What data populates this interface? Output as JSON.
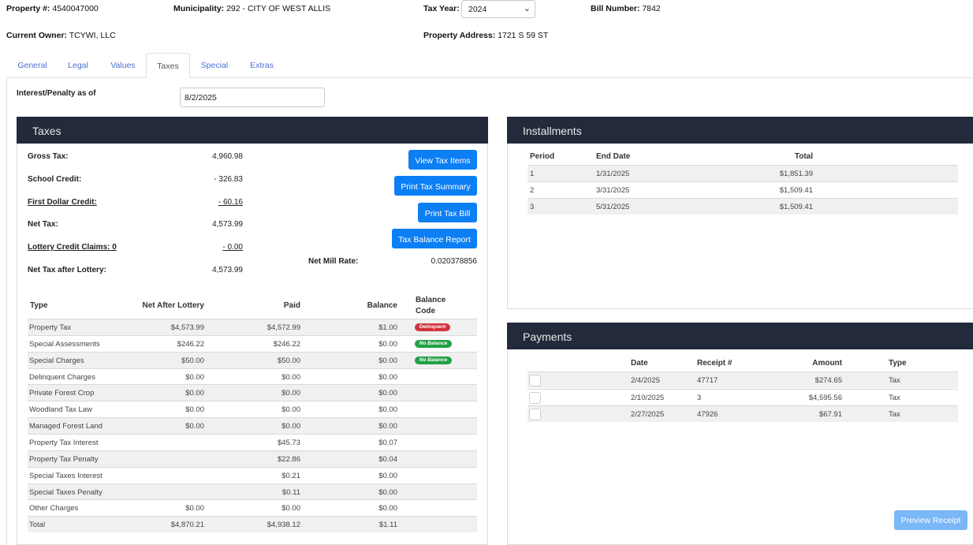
{
  "header": {
    "property_label": "Property #:",
    "property_value": "4540047000",
    "municipality_label": "Municipality:",
    "municipality_value": "292 - CITY OF WEST ALLIS",
    "tax_year_label": "Tax Year:",
    "tax_year_value": "2024",
    "bill_number_label": "Bill Number:",
    "bill_number_value": "7842",
    "owner_label": "Current Owner:",
    "owner_value": "TCYWI, LLC",
    "address_label": "Property Address:",
    "address_value": "1721 S 59 ST"
  },
  "tabs": [
    "General",
    "Legal",
    "Values",
    "Taxes",
    "Special",
    "Extras"
  ],
  "active_tab": "Taxes",
  "interest": {
    "label": "Interest/Penalty as of",
    "value": "8/2/2025"
  },
  "taxes_panel": {
    "title": "Taxes",
    "gross_tax_label": "Gross Tax:",
    "gross_tax_value": "4,960.98",
    "school_credit_label": "School Credit:",
    "school_credit_value": "- 326.83",
    "first_dollar_label": "First Dollar Credit:",
    "first_dollar_value": "- 60.16",
    "net_tax_label": "Net Tax:",
    "net_tax_value": "4,573.99",
    "lottery_label": "Lottery Credit Claims: 0",
    "lottery_value": "- 0.00",
    "net_after_lottery_label": "Net Tax after Lottery:",
    "net_after_lottery_value": "4,573.99",
    "mill_rate_label": "Net Mill Rate:",
    "mill_rate_value": "0.020378856",
    "buttons": {
      "view_items": "View Tax Items",
      "print_summary": "Print Tax Summary",
      "print_bill": "Print Tax Bill",
      "balance_report": "Tax Balance Report"
    },
    "table": {
      "headers": {
        "type": "Type",
        "net": "Net After Lottery",
        "paid": "Paid",
        "balance": "Balance",
        "code1": "Balance",
        "code2": "Code"
      },
      "rows": [
        {
          "type": "Property Tax",
          "net": "$4,573.99",
          "paid": "$4,572.99",
          "balance": "$1.00",
          "code": "Delinquent",
          "code_color": "red"
        },
        {
          "type": "Special Assessments",
          "net": "$246.22",
          "paid": "$246.22",
          "balance": "$0.00",
          "code": "No Balance",
          "code_color": "green"
        },
        {
          "type": "Special Charges",
          "net": "$50.00",
          "paid": "$50.00",
          "balance": "$0.00",
          "code": "No Balance",
          "code_color": "green"
        },
        {
          "type": "Delinquent Charges",
          "net": "$0.00",
          "paid": "$0.00",
          "balance": "$0.00",
          "code": ""
        },
        {
          "type": "Private Forest Crop",
          "net": "$0.00",
          "paid": "$0.00",
          "balance": "$0.00",
          "code": ""
        },
        {
          "type": "Woodland Tax Law",
          "net": "$0.00",
          "paid": "$0.00",
          "balance": "$0.00",
          "code": ""
        },
        {
          "type": "Managed Forest Land",
          "net": "$0.00",
          "paid": "$0.00",
          "balance": "$0.00",
          "code": ""
        },
        {
          "type": "Property Tax Interest",
          "net": "",
          "paid": "$45.73",
          "balance": "$0.07",
          "code": ""
        },
        {
          "type": "Property Tax Penalty",
          "net": "",
          "paid": "$22.86",
          "balance": "$0.04",
          "code": ""
        },
        {
          "type": "Special Taxes Interest",
          "net": "",
          "paid": "$0.21",
          "balance": "$0.00",
          "code": ""
        },
        {
          "type": "Special Taxes Penalty",
          "net": "",
          "paid": "$0.11",
          "balance": "$0.00",
          "code": ""
        },
        {
          "type": "Other Charges",
          "net": "$0.00",
          "paid": "$0.00",
          "balance": "$0.00",
          "code": ""
        },
        {
          "type": "Total",
          "net": "$4,870.21",
          "paid": "$4,938.12",
          "balance": "$1.11",
          "code": ""
        }
      ]
    }
  },
  "installments": {
    "title": "Installments",
    "headers": {
      "period": "Period",
      "end_date": "End Date",
      "total": "Total"
    },
    "rows": [
      {
        "period": "1",
        "end_date": "1/31/2025",
        "total": "$1,851.39"
      },
      {
        "period": "2",
        "end_date": "3/31/2025",
        "total": "$1,509.41"
      },
      {
        "period": "3",
        "end_date": "5/31/2025",
        "total": "$1,509.41"
      }
    ]
  },
  "payments": {
    "title": "Payments",
    "headers": {
      "date": "Date",
      "receipt": "Receipt #",
      "amount": "Amount",
      "type": "Type"
    },
    "rows": [
      {
        "date": "2/4/2025",
        "receipt": "47717",
        "amount": "$274.65",
        "type": "Tax"
      },
      {
        "date": "2/10/2025",
        "receipt": "3",
        "amount": "$4,595.56",
        "type": "Tax"
      },
      {
        "date": "2/27/2025",
        "receipt": "47926",
        "amount": "$67.91",
        "type": "Tax"
      }
    ],
    "preview_button": "Preview Receipt"
  },
  "colors": {
    "panel_header": "#222a3b",
    "button_primary": "#0d7ff5",
    "button_disabled": "#7ab7f7",
    "tab_link": "#4a6fd1",
    "badge_delinquent": "#d0343f",
    "badge_no_balance": "#22a046"
  },
  "icons": {
    "year_dropdown": "chevron-down-icon"
  }
}
